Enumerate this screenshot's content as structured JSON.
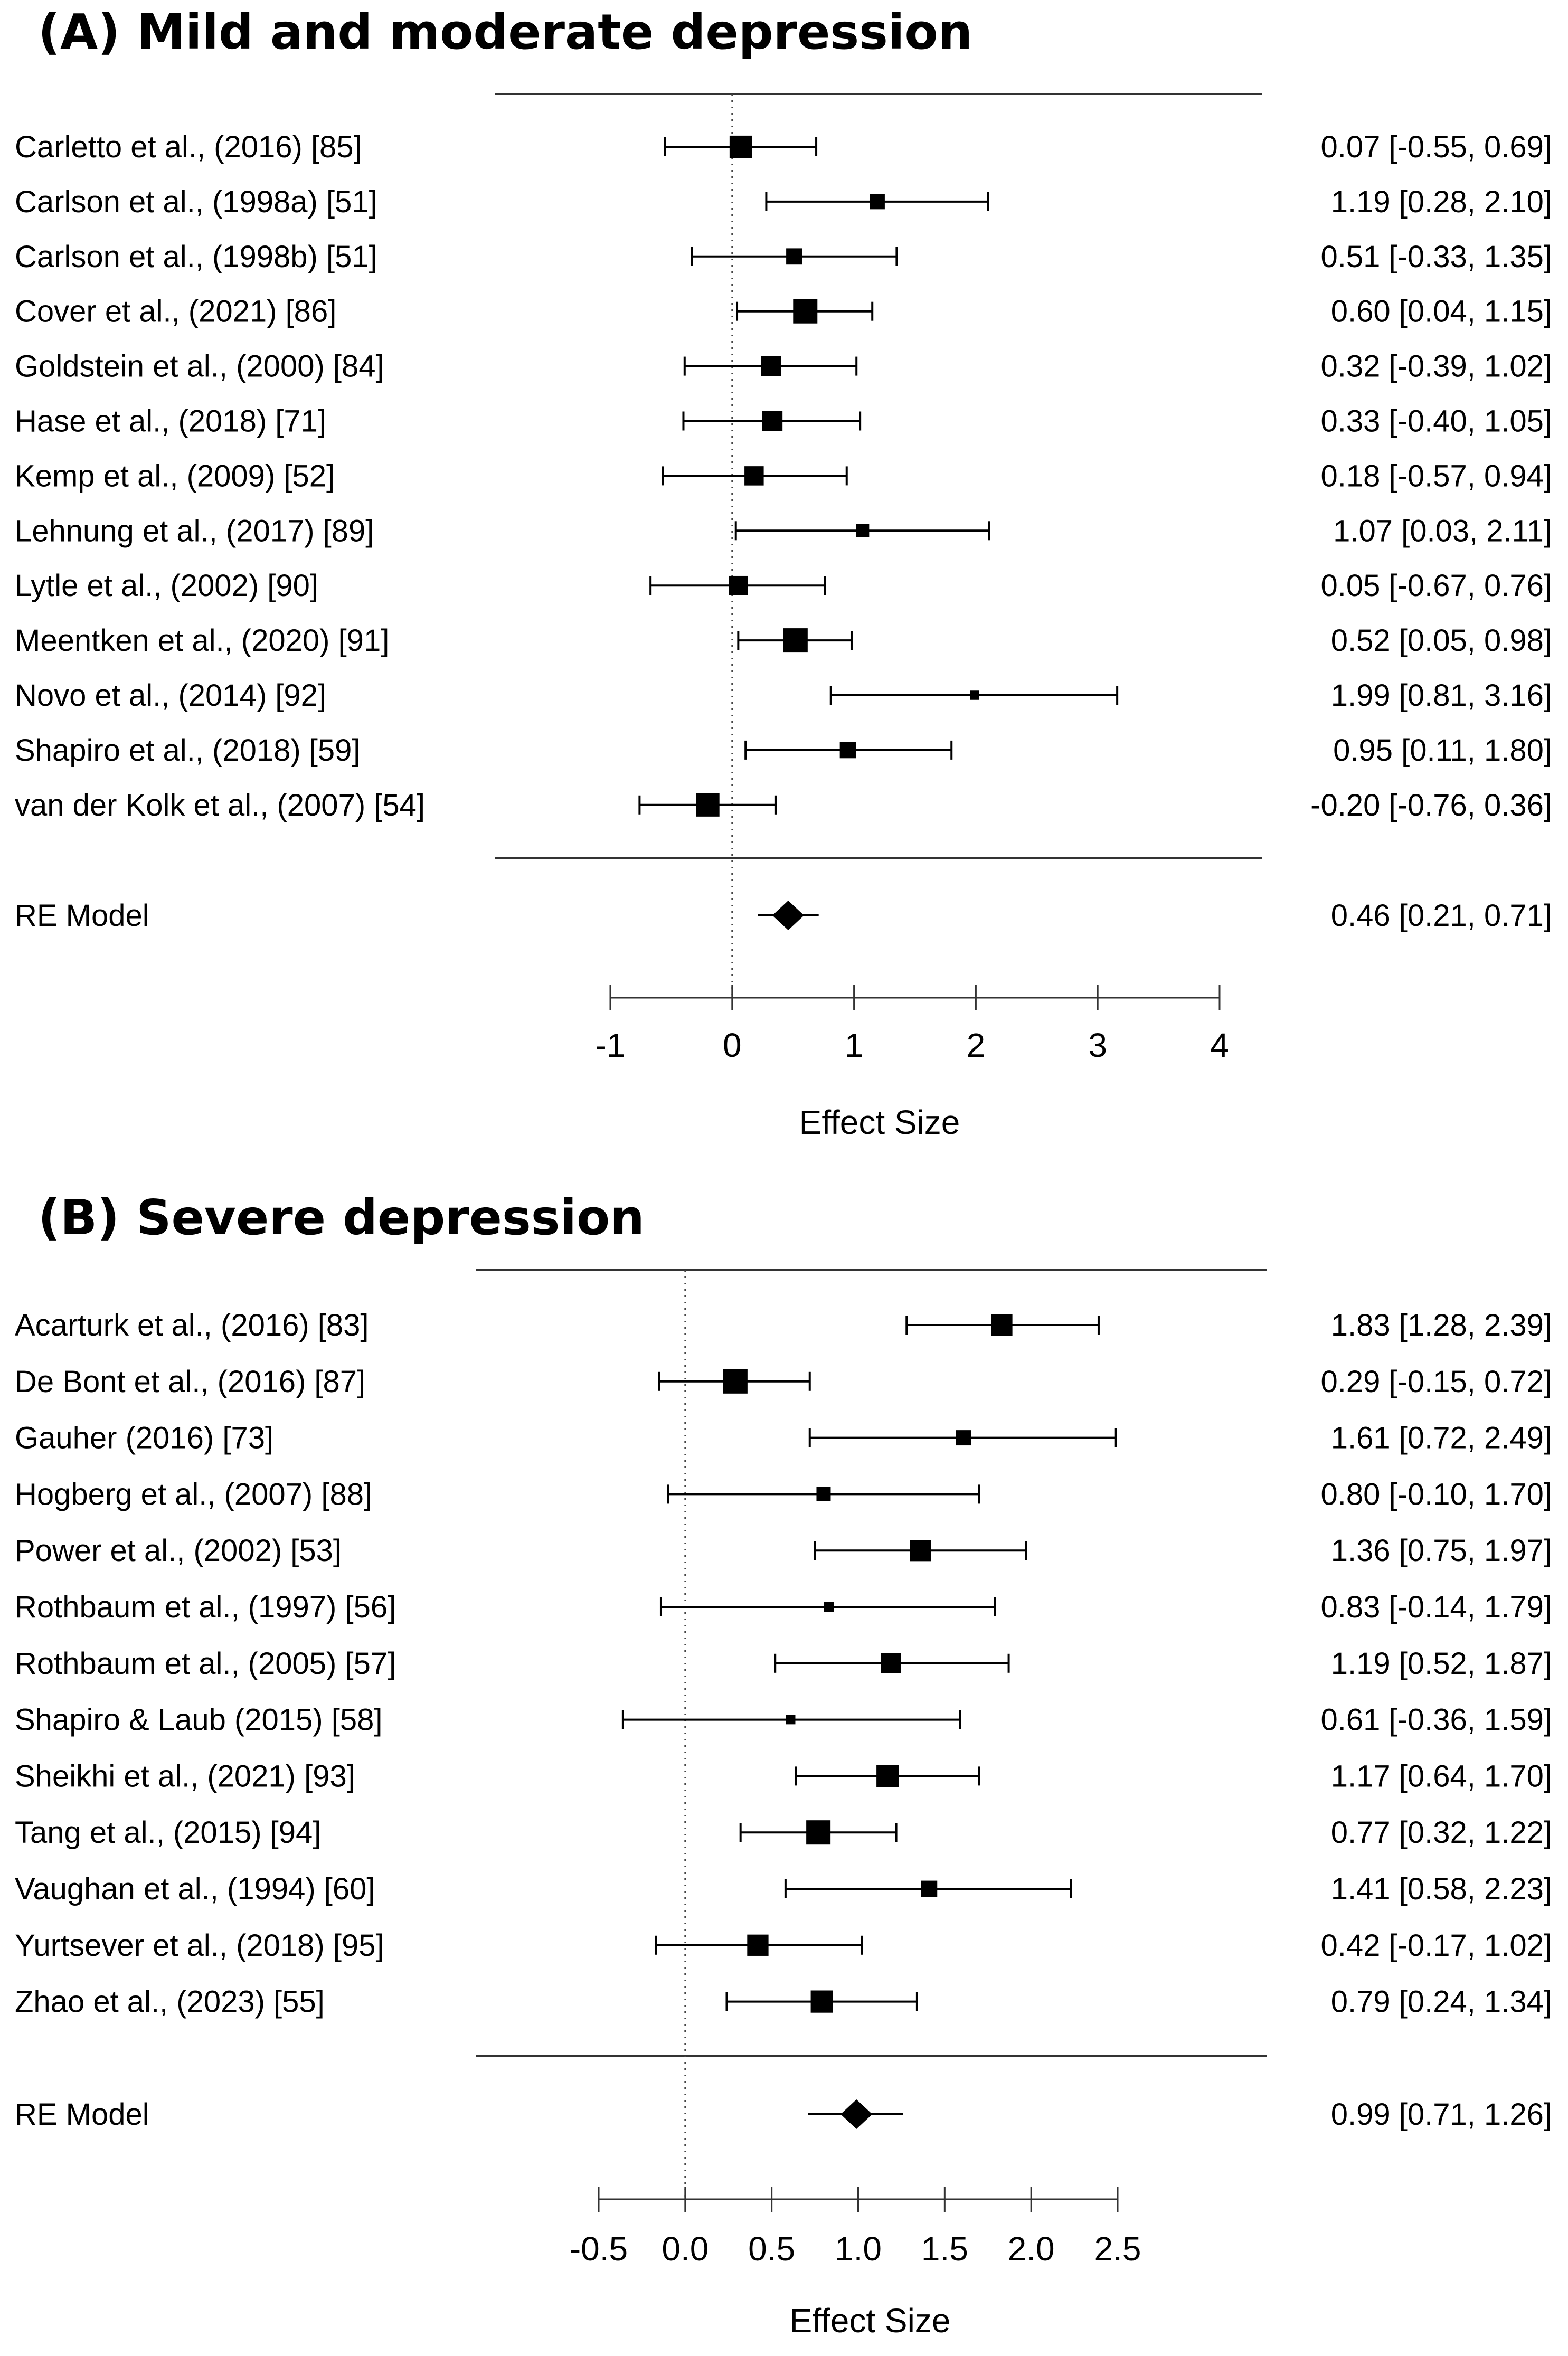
{
  "chart_data": [
    {
      "type": "forest",
      "title": "(A) Mild and moderate depression",
      "xlabel": "Effect Size",
      "xlim": [
        -1,
        4
      ],
      "xticks": [
        -1,
        0,
        1,
        2,
        3,
        4
      ],
      "tick_labels": [
        "-1",
        "0",
        "1",
        "2",
        "3",
        "4"
      ],
      "reference_line": 0,
      "studies": [
        {
          "label": "Carletto et al., (2016) [85]",
          "est": 0.07,
          "lo": -0.55,
          "hi": 0.69,
          "weight": 0.9,
          "text": "0.07 [-0.55, 0.69]"
        },
        {
          "label": "Carlson et al., (1998a) [51]",
          "est": 1.19,
          "lo": 0.28,
          "hi": 2.1,
          "weight": 0.55,
          "text": "1.19 [0.28, 2.10]"
        },
        {
          "label": "Carlson et al., (1998b) [51]",
          "est": 0.51,
          "lo": -0.33,
          "hi": 1.35,
          "weight": 0.6,
          "text": "0.51 [-0.33, 1.35]"
        },
        {
          "label": "Cover et al., (2021) [86]",
          "est": 0.6,
          "lo": 0.04,
          "hi": 1.15,
          "weight": 1.0,
          "text": "0.60 [0.04, 1.15]"
        },
        {
          "label": "Goldstein et al., (2000) [84]",
          "est": 0.32,
          "lo": -0.39,
          "hi": 1.02,
          "weight": 0.8,
          "text": "0.32 [-0.39, 1.02]"
        },
        {
          "label": "Hase et al., (2018) [71]",
          "est": 0.33,
          "lo": -0.4,
          "hi": 1.05,
          "weight": 0.8,
          "text": "0.33 [-0.40, 1.05]"
        },
        {
          "label": "Kemp et al., (2009) [52]",
          "est": 0.18,
          "lo": -0.57,
          "hi": 0.94,
          "weight": 0.75,
          "text": "0.18 [-0.57, 0.94]"
        },
        {
          "label": "Lehnung et al., (2017) [89]",
          "est": 1.07,
          "lo": 0.03,
          "hi": 2.11,
          "weight": 0.45,
          "text": "1.07 [0.03, 2.11]"
        },
        {
          "label": "Lytle et al., (2002) [90]",
          "est": 0.05,
          "lo": -0.67,
          "hi": 0.76,
          "weight": 0.75,
          "text": "0.05 [-0.67, 0.76]"
        },
        {
          "label": "Meentken et al., (2020) [91]",
          "est": 0.52,
          "lo": 0.05,
          "hi": 0.98,
          "weight": 1.0,
          "text": "0.52 [0.05, 0.98]"
        },
        {
          "label": "Novo et al., (2014) [92]",
          "est": 1.99,
          "lo": 0.81,
          "hi": 3.16,
          "weight": 0.25,
          "text": "1.99 [0.81, 3.16]"
        },
        {
          "label": "Shapiro et al., (2018) [59]",
          "est": 0.95,
          "lo": 0.11,
          "hi": 1.8,
          "weight": 0.6,
          "text": "0.95 [0.11, 1.80]"
        },
        {
          "label": "van der Kolk et al., (2007) [54]",
          "est": -0.2,
          "lo": -0.76,
          "hi": 0.36,
          "weight": 0.95,
          "text": "-0.20 [-0.76, 0.36]"
        }
      ],
      "summary": {
        "label": "RE Model",
        "est": 0.46,
        "lo": 0.21,
        "hi": 0.71,
        "text": "0.46 [0.21, 0.71]"
      }
    },
    {
      "type": "forest",
      "title": "(B) Severe depression",
      "xlabel": "Effect Size",
      "xlim": [
        -0.5,
        2.5
      ],
      "xticks": [
        -0.5,
        0.0,
        0.5,
        1.0,
        1.5,
        2.0,
        2.5
      ],
      "tick_labels": [
        "-0.5",
        "0.0",
        "0.5",
        "1.0",
        "1.5",
        "2.0",
        "2.5"
      ],
      "reference_line": 0,
      "studies": [
        {
          "label": "Acarturk et al., (2016) [83]",
          "est": 1.83,
          "lo": 1.28,
          "hi": 2.39,
          "weight": 0.85,
          "text": "1.83 [1.28, 2.39]"
        },
        {
          "label": "De Bont et al., (2016) [87]",
          "est": 0.29,
          "lo": -0.15,
          "hi": 0.72,
          "weight": 1.0,
          "text": "0.29 [-0.15, 0.72]"
        },
        {
          "label": "Gauher (2016) [73]",
          "est": 1.61,
          "lo": 0.72,
          "hi": 2.49,
          "weight": 0.55,
          "text": "1.61 [0.72, 2.49]"
        },
        {
          "label": "Hogberg et al., (2007) [88]",
          "est": 0.8,
          "lo": -0.1,
          "hi": 1.7,
          "weight": 0.5,
          "text": "0.80 [-0.10, 1.70]"
        },
        {
          "label": "Power et al., (2002) [53]",
          "est": 1.36,
          "lo": 0.75,
          "hi": 1.97,
          "weight": 0.85,
          "text": "1.36 [0.75, 1.97]"
        },
        {
          "label": "Rothbaum et al., (1997) [56]",
          "est": 0.83,
          "lo": -0.14,
          "hi": 1.79,
          "weight": 0.3,
          "text": "0.83 [-0.14, 1.79]"
        },
        {
          "label": "Rothbaum et al., (2005) [57]",
          "est": 1.19,
          "lo": 0.52,
          "hi": 1.87,
          "weight": 0.8,
          "text": "1.19 [0.52, 1.87]"
        },
        {
          "label": "Shapiro & Laub (2015) [58]",
          "est": 0.61,
          "lo": -0.36,
          "hi": 1.59,
          "weight": 0.25,
          "text": "0.61 [-0.36, 1.59]"
        },
        {
          "label": "Sheikhi et al., (2021) [93]",
          "est": 1.17,
          "lo": 0.64,
          "hi": 1.7,
          "weight": 0.9,
          "text": "1.17 [0.64, 1.70]"
        },
        {
          "label": "Tang et al., (2015) [94]",
          "est": 0.77,
          "lo": 0.32,
          "hi": 1.22,
          "weight": 1.0,
          "text": "0.77 [0.32, 1.22]"
        },
        {
          "label": "Vaughan et al., (1994) [60]",
          "est": 1.41,
          "lo": 0.58,
          "hi": 2.23,
          "weight": 0.6,
          "text": "1.41 [0.58, 2.23]"
        },
        {
          "label": "Yurtsever et al., (2018) [95]",
          "est": 0.42,
          "lo": -0.17,
          "hi": 1.02,
          "weight": 0.85,
          "text": "0.42 [-0.17, 1.02]"
        },
        {
          "label": "Zhao et al., (2023) [55]",
          "est": 0.79,
          "lo": 0.24,
          "hi": 1.34,
          "weight": 0.9,
          "text": "0.79 [0.24, 1.34]"
        }
      ],
      "summary": {
        "label": "RE Model",
        "est": 0.99,
        "lo": 0.71,
        "hi": 1.26,
        "text": "0.99 [0.71, 1.26]"
      }
    }
  ]
}
